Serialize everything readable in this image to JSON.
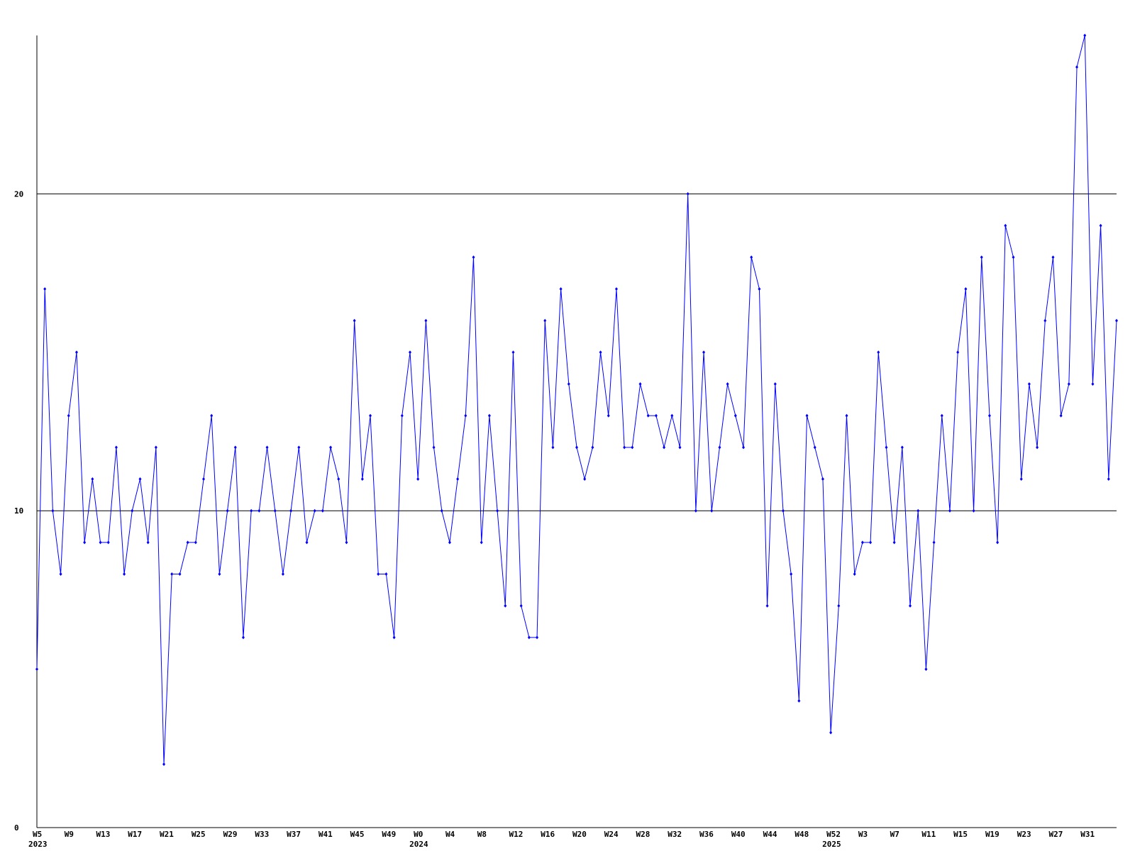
{
  "chart_data": {
    "type": "line",
    "color": "#0000ff",
    "grid": true,
    "ylim": [
      0,
      25
    ],
    "yticks": [
      0,
      10,
      20
    ],
    "categories": [
      "W5",
      null,
      null,
      null,
      "W9",
      null,
      null,
      null,
      "W13",
      null,
      null,
      null,
      "W17",
      null,
      null,
      null,
      "W21",
      null,
      null,
      null,
      "W25",
      null,
      null,
      null,
      "W29",
      null,
      null,
      null,
      "W33",
      null,
      null,
      null,
      "W37",
      null,
      null,
      null,
      "W41",
      null,
      null,
      null,
      "W45",
      null,
      null,
      null,
      "W49",
      null,
      null,
      null,
      "W0",
      null,
      null,
      null,
      "W4",
      null,
      null,
      null,
      "W8",
      null,
      null,
      null,
      "W12",
      null,
      null,
      null,
      "W16",
      null,
      null,
      null,
      "W20",
      null,
      null,
      null,
      "W24",
      null,
      null,
      null,
      "W28",
      null,
      null,
      null,
      "W32",
      null,
      null,
      null,
      "W36",
      null,
      null,
      null,
      "W40",
      null,
      null,
      null,
      "W44",
      null,
      null,
      null,
      "W48",
      null,
      null,
      null,
      "W52",
      null,
      null,
      null,
      "W3",
      null,
      null,
      null,
      "W7",
      null,
      null,
      null,
      "W11",
      null,
      null,
      null,
      "W15",
      null,
      null,
      null,
      "W19",
      null,
      null,
      null,
      "W23",
      null,
      null,
      null,
      "W27",
      null,
      null,
      null,
      "W31",
      null,
      null,
      null,
      null
    ],
    "year_labels": [
      "2023",
      null,
      null,
      null,
      null,
      null,
      null,
      null,
      null,
      null,
      null,
      null,
      null,
      null,
      null,
      null,
      null,
      null,
      null,
      null,
      null,
      null,
      null,
      null,
      null,
      null,
      null,
      null,
      null,
      null,
      null,
      null,
      null,
      null,
      null,
      null,
      null,
      null,
      null,
      null,
      null,
      null,
      null,
      null,
      null,
      null,
      null,
      null,
      "2024",
      null,
      null,
      null,
      null,
      null,
      null,
      null,
      null,
      null,
      null,
      null,
      null,
      null,
      null,
      null,
      null,
      null,
      null,
      null,
      null,
      null,
      null,
      null,
      null,
      null,
      null,
      null,
      null,
      null,
      null,
      null,
      null,
      null,
      null,
      null,
      null,
      null,
      null,
      null,
      null,
      null,
      null,
      null,
      null,
      null,
      null,
      null,
      null,
      null,
      null,
      null,
      "2025",
      null,
      null,
      null,
      null,
      null,
      null,
      null,
      null,
      null,
      null,
      null,
      null,
      null,
      null,
      null,
      null,
      null,
      null,
      null,
      null,
      null,
      null,
      null,
      null,
      null,
      null,
      null,
      null,
      null,
      null,
      null,
      null,
      null,
      null,
      null,
      null
    ],
    "values": [
      5,
      17,
      10,
      8,
      13,
      15,
      9,
      11,
      9,
      9,
      12,
      8,
      10,
      11,
      9,
      12,
      2,
      8,
      8,
      9,
      9,
      11,
      13,
      8,
      10,
      12,
      6,
      10,
      10,
      12,
      10,
      8,
      10,
      12,
      9,
      10,
      10,
      12,
      11,
      9,
      16,
      11,
      13,
      8,
      8,
      6,
      13,
      15,
      11,
      16,
      12,
      10,
      9,
      11,
      13,
      18,
      9,
      13,
      10,
      7,
      15,
      7,
      6,
      6,
      16,
      12,
      17,
      14,
      12,
      11,
      12,
      15,
      13,
      17,
      12,
      12,
      14,
      13,
      13,
      12,
      13,
      12,
      20,
      10,
      15,
      10,
      12,
      14,
      13,
      12,
      18,
      17,
      7,
      14,
      10,
      8,
      4,
      13,
      12,
      11,
      3,
      7,
      13,
      8,
      9,
      9,
      15,
      12,
      9,
      12,
      7,
      10,
      5,
      9,
      13,
      10,
      15,
      17,
      10,
      18,
      13,
      9,
      19,
      18,
      11,
      14,
      12,
      16,
      18,
      13,
      14,
      24,
      25,
      14,
      19,
      11,
      16
    ]
  }
}
